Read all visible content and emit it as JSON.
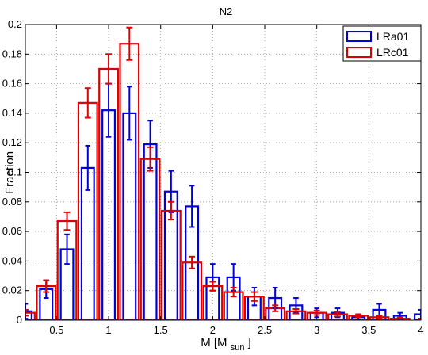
{
  "chart_data": {
    "type": "bar",
    "title": "N2",
    "xlabel": "M [M",
    "xlabel_sub": "sun",
    "xlabel_close": "]",
    "ylabel": "Fraction",
    "xlim": [
      0.2,
      4.0
    ],
    "ylim": [
      0,
      0.2
    ],
    "grid": true,
    "legend_position": "top-right",
    "x_ticks": [
      0.5,
      1,
      1.5,
      2,
      2.5,
      3,
      3.5,
      4
    ],
    "x_tick_labels": [
      "0.5",
      "1",
      "1.5",
      "2",
      "2.5",
      "3",
      "3.5",
      "4"
    ],
    "y_ticks": [
      0,
      0.02,
      0.04,
      0.06,
      0.08,
      0.1,
      0.12,
      0.14,
      0.16,
      0.18,
      0.2
    ],
    "y_tick_labels": [
      "0",
      "0.02",
      "0.04",
      "0.06",
      "0.08",
      "0.1",
      "0.12",
      "0.14",
      "0.16",
      "0.18",
      "0.2"
    ],
    "bin_centers": [
      0.2,
      0.4,
      0.6,
      0.8,
      1.0,
      1.2,
      1.4,
      1.6,
      1.8,
      2.0,
      2.2,
      2.4,
      2.6,
      2.8,
      3.0,
      3.2,
      3.4,
      3.6,
      3.8,
      4.0
    ],
    "series": [
      {
        "name": "LRa01",
        "color": "#0000dd",
        "values": [
          0.006,
          0.021,
          0.048,
          0.103,
          0.142,
          0.14,
          0.119,
          0.087,
          0.077,
          0.029,
          0.029,
          0.016,
          0.015,
          0.01,
          0.005,
          0.005,
          0.002,
          0.007,
          0.003,
          0.004
        ],
        "errors": [
          0.005,
          0.006,
          0.01,
          0.015,
          0.018,
          0.018,
          0.016,
          0.014,
          0.014,
          0.009,
          0.009,
          0.006,
          0.007,
          0.005,
          0.003,
          0.003,
          0.002,
          0.004,
          0.002,
          0.003
        ]
      },
      {
        "name": "LRc01",
        "color": "#dd0000",
        "values": [
          0.005,
          0.023,
          0.067,
          0.147,
          0.17,
          0.187,
          0.109,
          0.074,
          0.039,
          0.023,
          0.019,
          0.016,
          0.008,
          0.006,
          0.005,
          0.004,
          0.003,
          0.002,
          0.001,
          0.0
        ],
        "errors": [
          0.002,
          0.004,
          0.006,
          0.01,
          0.01,
          0.011,
          0.008,
          0.006,
          0.004,
          0.003,
          0.003,
          0.003,
          0.002,
          0.0015,
          0.0015,
          0.0015,
          0.001,
          0.001,
          0.0008,
          0.0005
        ]
      }
    ]
  }
}
